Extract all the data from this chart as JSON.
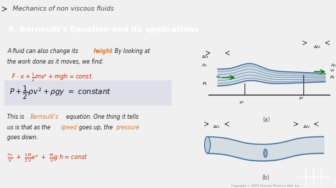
{
  "header_text": "Mechanics of non viscous fluids",
  "header_bg": "#dedede",
  "header_fg": "#555555",
  "title_text": "6. Bernoulli’s Equation and its applications",
  "title_bg": "#444444",
  "title_fg": "#ffffff",
  "main_bg": "#f0f0f0",
  "body_fg": "#222222",
  "orange": "#e07820",
  "red": "#cc2200",
  "teal": "#008b8b",
  "eq_bg": "#dde0ea",
  "diag_fill": "#b8ccd8",
  "diag_line": "#336699",
  "diag_arrow": "#007700",
  "copyright": "Copyright © 2000 Pearson Prentice Hall, Inc.",
  "logo_bg": "#3a5a2a"
}
